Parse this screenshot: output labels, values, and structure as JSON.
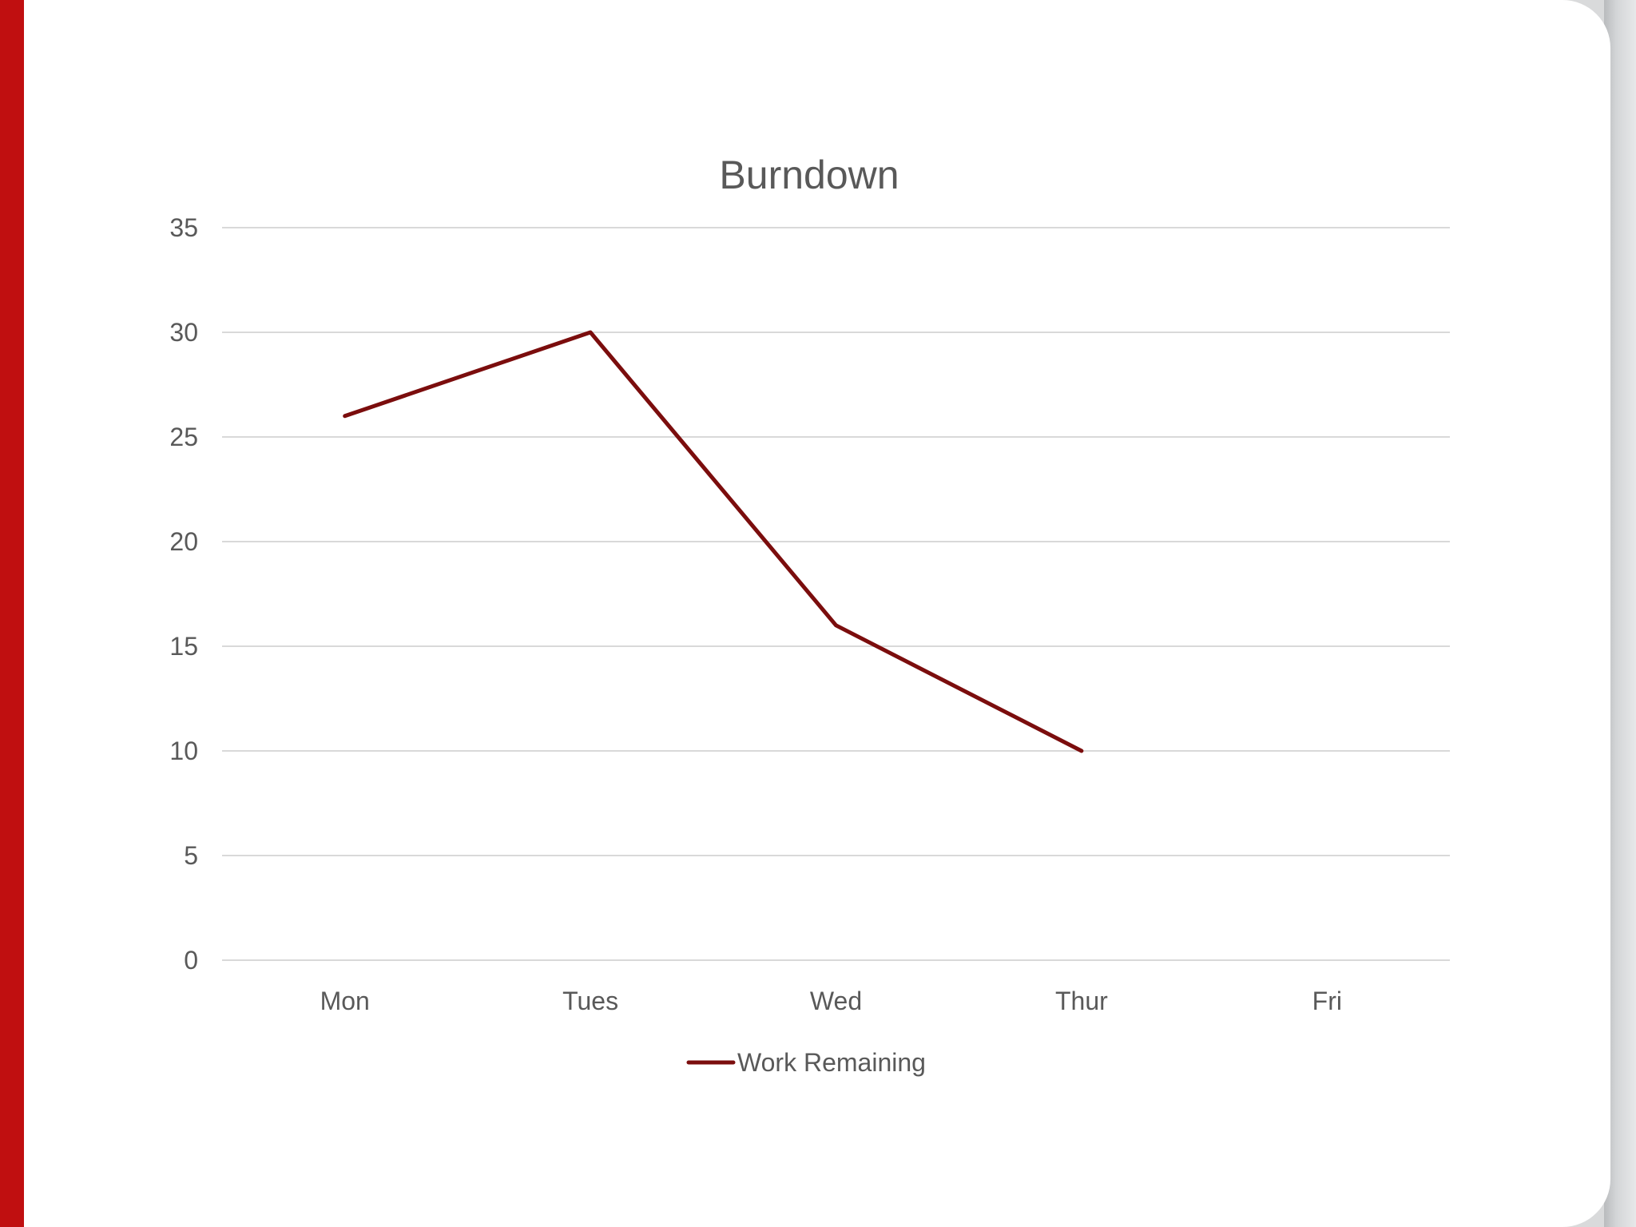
{
  "chart_data": {
    "type": "line",
    "title": "Burndown",
    "xlabel": "",
    "ylabel": "",
    "categories": [
      "Mon",
      "Tues",
      "Wed",
      "Thur",
      "Fri"
    ],
    "ylim": [
      0,
      35
    ],
    "yticks": [
      0,
      5,
      10,
      15,
      20,
      25,
      30,
      35
    ],
    "grid": true,
    "legend": "bottom",
    "series": [
      {
        "name": "Work Remaining",
        "values": [
          26,
          30,
          16,
          10,
          null
        ],
        "color": "#7b0d0d"
      }
    ]
  },
  "theme": {
    "accent": "#c00f10",
    "gridline": "#d9d9d9",
    "text": "#595959"
  }
}
